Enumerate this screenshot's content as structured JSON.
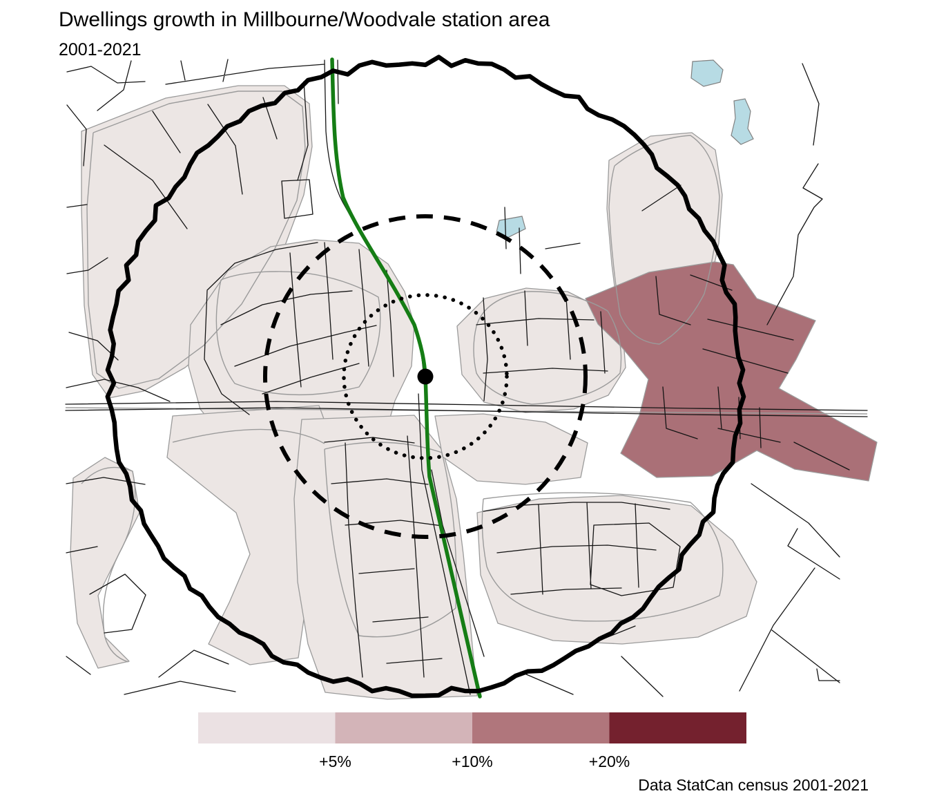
{
  "title": "Dwellings growth in Millbourne/Woodvale station area",
  "subtitle": "2001-2021",
  "attribution": "Data StatCan census 2001-2021",
  "legend": {
    "labels": [
      "+5%",
      "+10%",
      "+20%"
    ],
    "colors": [
      "#ebe1e3",
      "#d3b4b8",
      "#b0767c",
      "#74212e"
    ]
  },
  "map": {
    "colors": {
      "growth_low": "#ece6e4",
      "growth_high": "#aa7077",
      "water": "#b7dbe4",
      "transit_line": "#157d15",
      "road": "#141414",
      "boundary": "#9b9b9b",
      "rings": "#000000"
    },
    "rings": {
      "outer_style": "solid",
      "middle_style": "dashed",
      "inner_style": "dotted"
    },
    "station_marker": "black-dot"
  }
}
